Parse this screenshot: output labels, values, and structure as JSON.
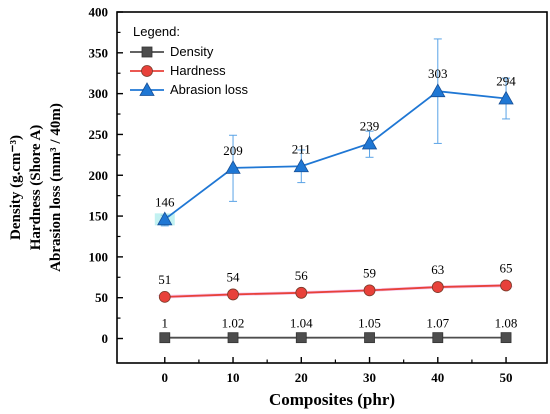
{
  "chart_data": {
    "type": "line",
    "x": [
      0,
      10,
      20,
      30,
      40,
      50
    ],
    "xlabel": "Composites (phr)",
    "ylabel_lines": [
      "Density (g.cm⁻³)",
      "Hardness (Shore A)",
      "Abrasion loss (mm³ / 40m)"
    ],
    "xlim": [
      -7,
      56
    ],
    "ylim": [
      -30,
      400
    ],
    "xticks": [
      0,
      10,
      20,
      30,
      40,
      50
    ],
    "yticks": [
      0,
      50,
      100,
      150,
      200,
      250,
      300,
      350,
      400
    ],
    "grid": false,
    "legend": {
      "title": "Legend:",
      "position": "top-left"
    },
    "series": [
      {
        "name": "Density",
        "color": "#4d4d4d",
        "marker": "square",
        "values": [
          1,
          1.02,
          1.04,
          1.05,
          1.07,
          1.08
        ],
        "labels": [
          "1",
          "1.02",
          "1.04",
          "1.05",
          "1.07",
          "1.08"
        ]
      },
      {
        "name": "Hardness",
        "color": "#e8413a",
        "marker": "circle",
        "values": [
          51,
          54,
          56,
          59,
          63,
          65
        ],
        "labels": [
          "51",
          "54",
          "56",
          "59",
          "63",
          "65"
        ],
        "error": [
          2,
          2,
          2,
          2,
          2,
          2
        ]
      },
      {
        "name": "Abrasion loss",
        "color": "#1f77d4",
        "marker": "triangle",
        "values": [
          146,
          209,
          211,
          239,
          303,
          294
        ],
        "labels": [
          "146",
          "209",
          "211",
          "239",
          "303",
          "294"
        ],
        "error_low": [
          8,
          41,
          20,
          17,
          64,
          25
        ],
        "error_high": [
          5,
          40,
          20,
          15,
          64,
          25
        ]
      }
    ]
  }
}
